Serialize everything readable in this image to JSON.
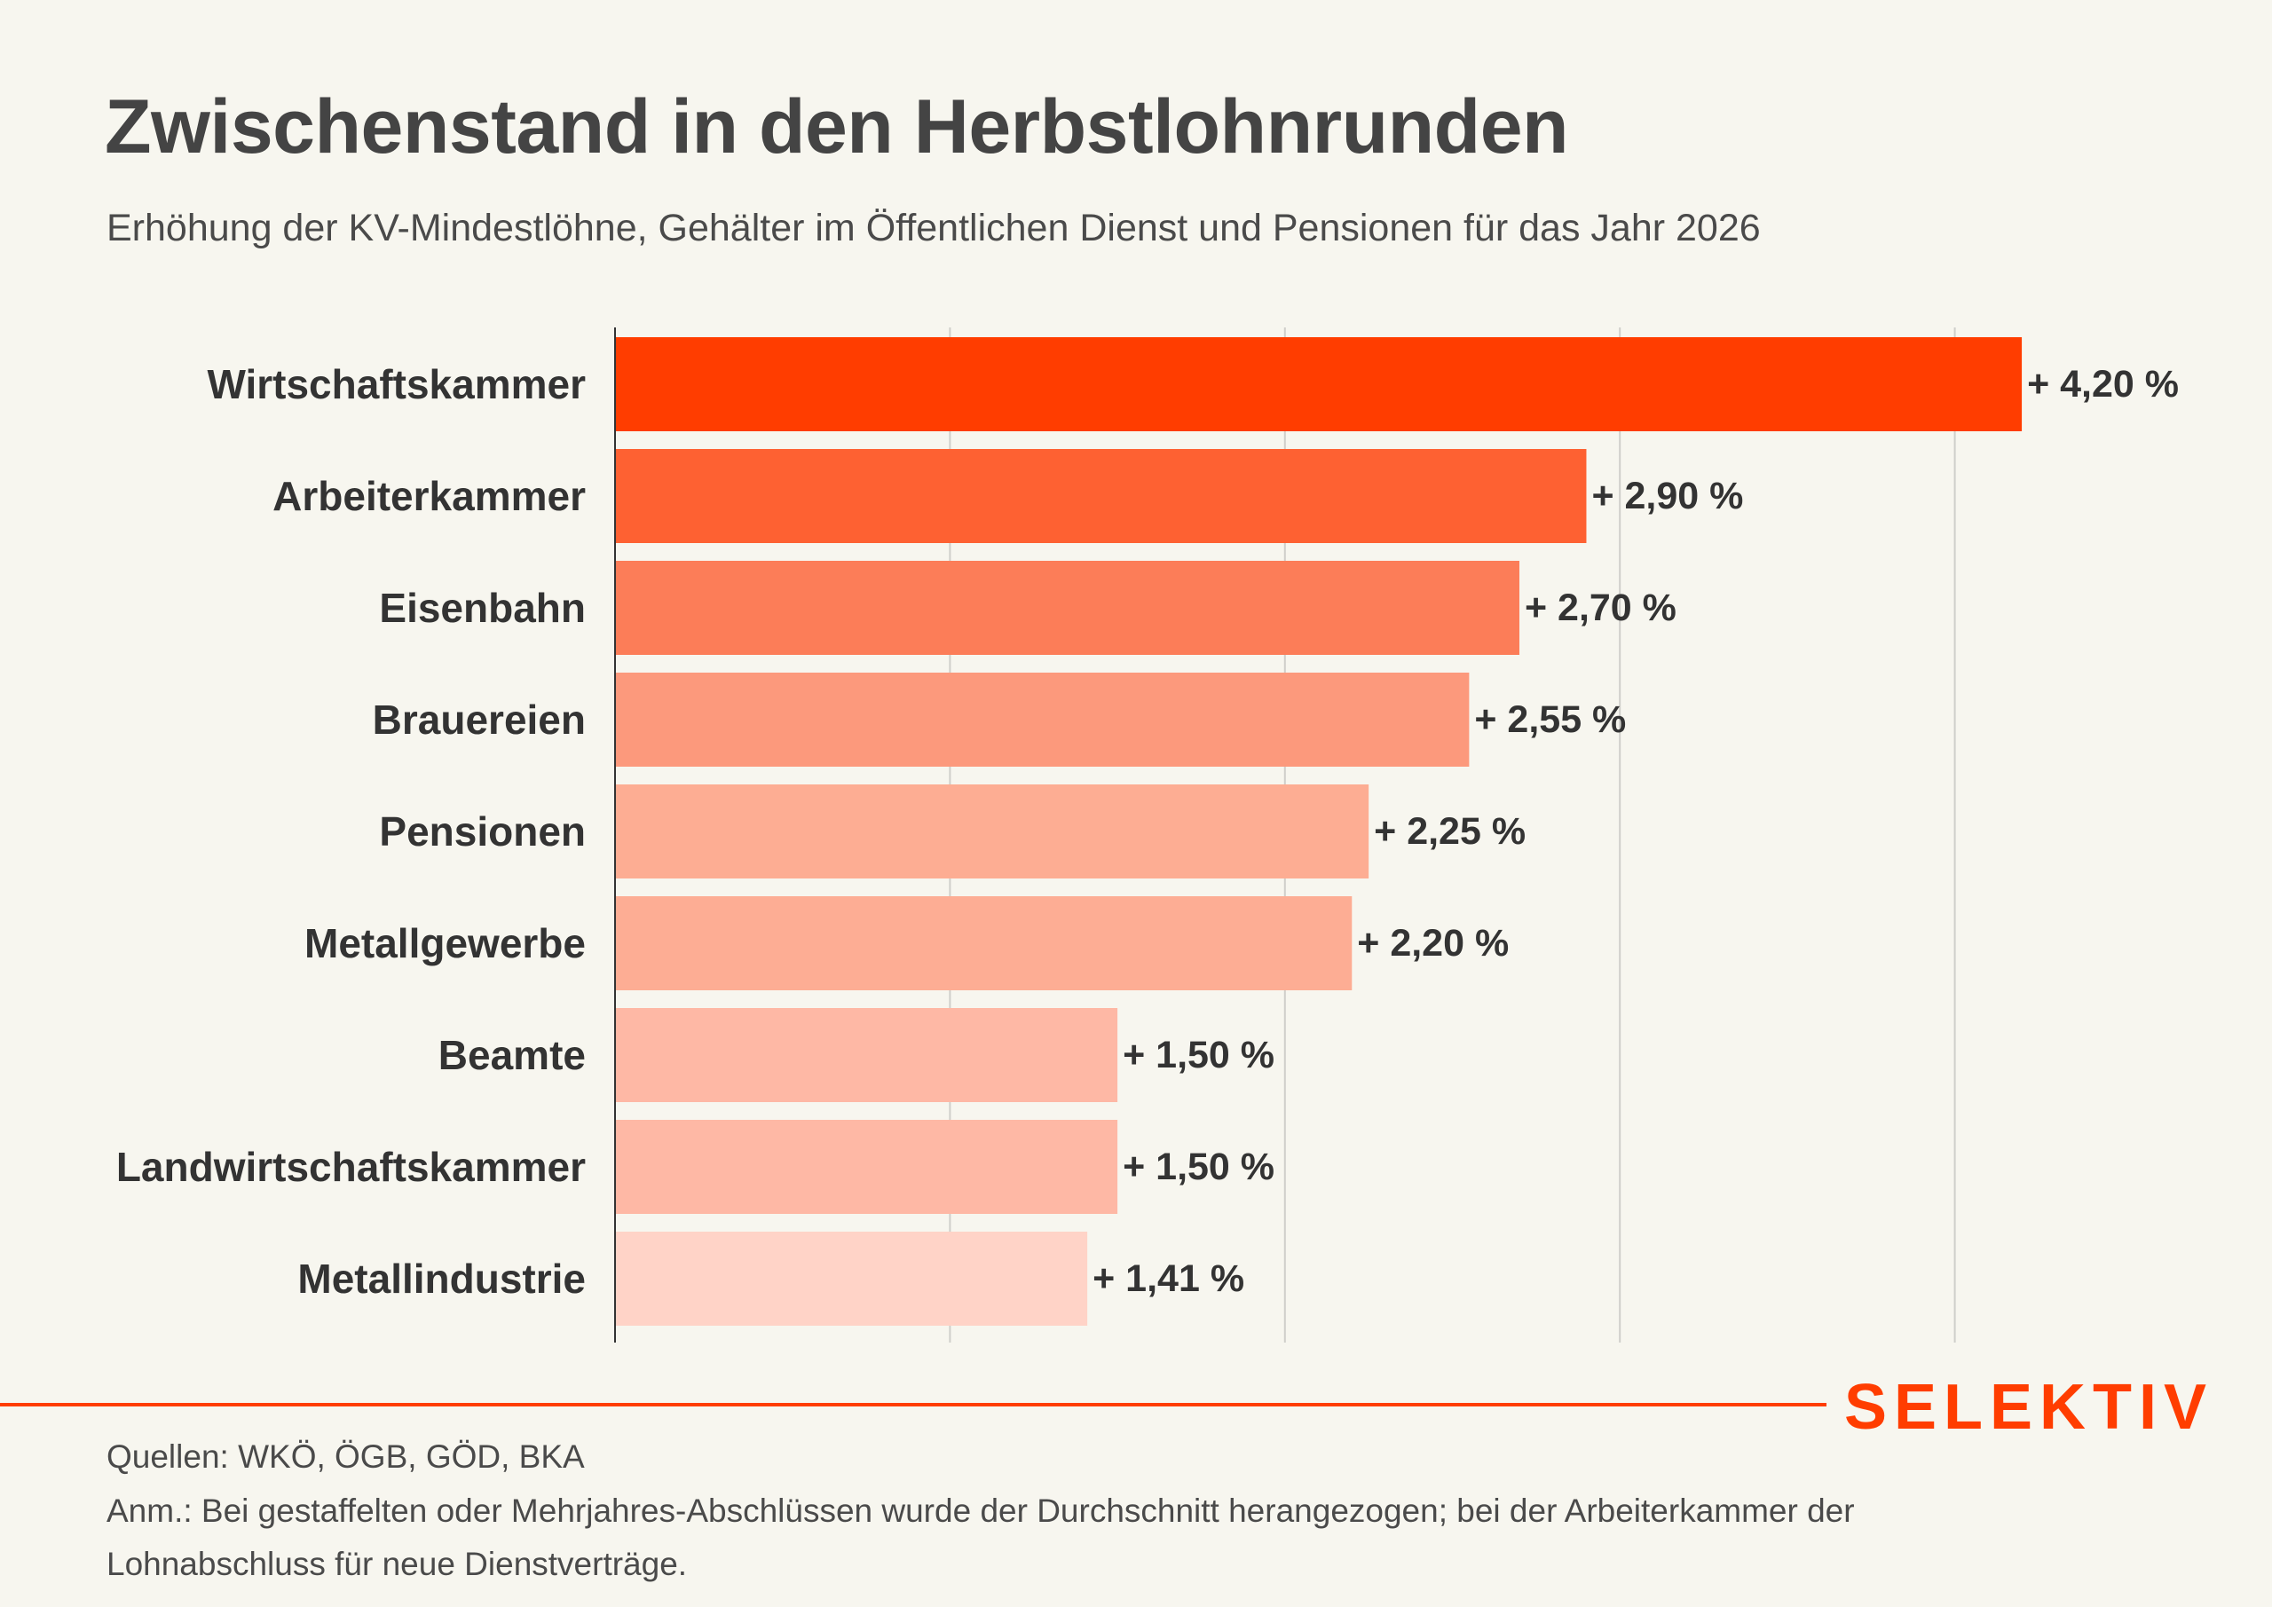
{
  "header": {
    "title": "Zwischenstand in den Herbstlohnrunden",
    "subtitle": "Erhöhung der KV-Mindestlöhne, Gehälter im Öffentlichen Dienst und Pensionen für das Jahr 2026"
  },
  "chart_data": {
    "type": "bar",
    "orientation": "horizontal",
    "title": "Zwischenstand in den Herbstlohnrunden",
    "subtitle": "Erhöhung der KV-Mindestlöhne, Gehälter im Öffentlichen Dienst und Pensionen für das Jahr 2026",
    "xlabel": "",
    "ylabel": "",
    "unit": "%",
    "xlim": [
      0,
      4.2
    ],
    "gridlines": [
      1,
      2,
      3,
      4
    ],
    "grid": true,
    "tick_labels_visible": false,
    "categories": [
      "Wirtschaftskammer",
      "Arbeiterkammer",
      "Eisenbahn",
      "Brauereien",
      "Pensionen",
      "Metallgewerbe",
      "Beamte",
      "Landwirtschaftskammer",
      "Metallindustrie"
    ],
    "values": [
      4.2,
      2.9,
      2.7,
      2.55,
      2.25,
      2.2,
      1.5,
      1.5,
      1.41
    ],
    "value_labels": [
      "+ 4,20 %",
      "+ 2,90 %",
      "+ 2,70 %",
      "+ 2,55 %",
      "+ 2,25 %",
      "+ 2,20 %",
      "+ 1,50 %",
      "+ 1,50 %",
      "+ 1,41 %"
    ],
    "colors": [
      "#FF3D00",
      "#FE6132",
      "#FC7D58",
      "#FC997C",
      "#FDAD93",
      "#FDAD94",
      "#FEB8A5",
      "#FEB8A5",
      "#FFD3C7"
    ]
  },
  "colors": {
    "background": "#F7F6EF",
    "accent": "#FF3D00",
    "text": "#333333",
    "gridline": "#CFCFCA",
    "axis": "#333333"
  },
  "branding": {
    "logo_text": "SELEKTIV"
  },
  "footer": {
    "sources": "Quellen: WKÖ, ÖGB, GÖD, BKA",
    "note_line1": "Anm.: Bei gestaffelten oder Mehrjahres-Abschlüssen wurde der Durchschnitt herangezogen; bei der Arbeiterkammer der",
    "note_line2": "Lohnabschluss für neue Dienstverträge."
  }
}
